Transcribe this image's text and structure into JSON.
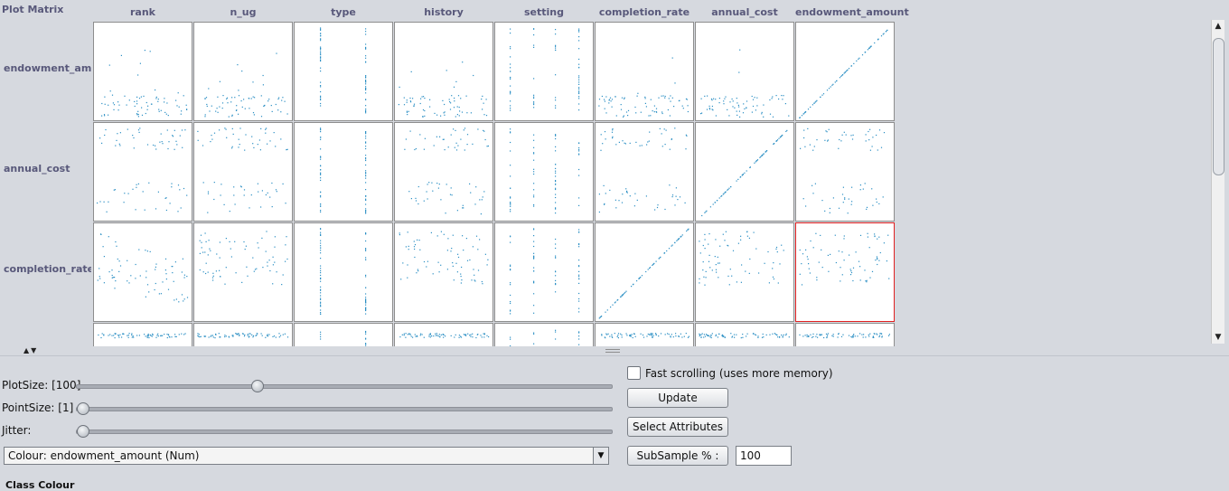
{
  "matrix": {
    "title": "Plot Matrix",
    "columns": [
      "rank",
      "n_ug",
      "type",
      "history",
      "setting",
      "completion_rate",
      "annual_cost",
      "endowment_amount"
    ],
    "rows": [
      "endowment_amo",
      "annual_cost",
      "completion_rate"
    ],
    "point_color": "#2b8fc4",
    "selected_cell_color": "#e02020"
  },
  "controls": {
    "plot_size_label": "PlotSize: [100]",
    "point_size_label": "PointSize: [1]",
    "jitter_label": "Jitter:",
    "plot_size_value": 100,
    "point_size_value": 1,
    "jitter_value": 0,
    "colour_select": "Colour: endowment_amount  (Num)",
    "fast_scrolling_label": "Fast scrolling (uses more memory)",
    "fast_scrolling_checked": false,
    "update_label": "Update",
    "select_attributes_label": "Select Attributes",
    "subsample_label": "SubSample % :",
    "subsample_value": "100",
    "class_colour_label": "Class Colour"
  },
  "icons": {
    "scroll_up": "arrow-up-icon",
    "scroll_down": "arrow-down-icon",
    "dropdown": "chevron-down-icon"
  }
}
